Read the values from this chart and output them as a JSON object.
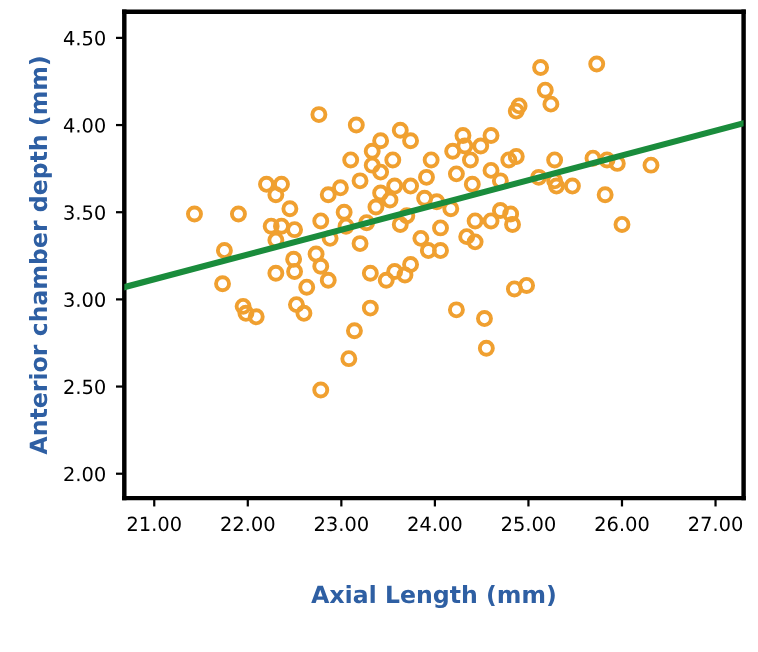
{
  "chart_data": {
    "type": "scatter",
    "xlabel": "Axial Length (mm)",
    "ylabel": "Anterior chamber depth (mm)",
    "xlim": [
      20.68,
      27.3
    ],
    "ylim": [
      1.86,
      4.65
    ],
    "xticks": [
      {
        "value": 21,
        "label": "21.00"
      },
      {
        "value": 22,
        "label": "22.00"
      },
      {
        "value": 23,
        "label": "23.00"
      },
      {
        "value": 24,
        "label": "24.00"
      },
      {
        "value": 25,
        "label": "25.00"
      },
      {
        "value": 26,
        "label": "26.00"
      },
      {
        "value": 27,
        "label": "27.00"
      }
    ],
    "yticks": [
      {
        "value": 2,
        "label": "2.00"
      },
      {
        "value": 2.5,
        "label": "2.50"
      },
      {
        "value": 3,
        "label": "3.00"
      },
      {
        "value": 3.5,
        "label": "3.50"
      },
      {
        "value": 4,
        "label": "4.00"
      },
      {
        "value": 4.5,
        "label": "4.50"
      }
    ],
    "grid": false,
    "marker": "circle",
    "series": [
      {
        "color": "#f0a030",
        "x": [
          21.43,
          21.9,
          21.75,
          21.73,
          21.95,
          21.98,
          22.09,
          22.2,
          22.36,
          22.3,
          22.45,
          22.25,
          22.36,
          22.5,
          22.3,
          22.49,
          22.3,
          22.5,
          22.52,
          22.6,
          22.76,
          22.78,
          22.63,
          22.73,
          22.78,
          22.86,
          22.99,
          22.86,
          22.88,
          23.03,
          23.05,
          23.16,
          23.1,
          23.14,
          23.08,
          23.31,
          23.2,
          23.31,
          23.27,
          23.2,
          23.33,
          23.33,
          23.42,
          23.42,
          23.37,
          23.52,
          23.55,
          23.57,
          23.63,
          23.7,
          23.74,
          23.57,
          23.48,
          23.68,
          23.74,
          23.85,
          23.89,
          23.91,
          23.96,
          24.02,
          24.06,
          24.06,
          23.93,
          24.17,
          24.23,
          24.19,
          24.23,
          24.3,
          24.32,
          24.38,
          24.4,
          24.43,
          24.34,
          24.43,
          24.53,
          24.55,
          24.49,
          24.6,
          24.6,
          24.7,
          24.7,
          24.81,
          24.83,
          24.85,
          24.98,
          24.79,
          24.87,
          24.87,
          24.9,
          25.13,
          25.18,
          25.24,
          25.11,
          25.28,
          25.28,
          25.3,
          25.47,
          25.73,
          25.69,
          25.84,
          25.82,
          25.95,
          26.0,
          26.31,
          24.6,
          22.78,
          23.74,
          23.63,
          23.42
        ],
        "values": [
          3.49,
          3.49,
          3.28,
          3.09,
          2.96,
          2.92,
          2.9,
          3.66,
          3.66,
          3.6,
          3.52,
          3.42,
          3.42,
          3.4,
          3.34,
          3.23,
          3.15,
          3.16,
          2.97,
          2.92,
          4.06,
          2.48,
          3.07,
          3.26,
          3.19,
          3.11,
          3.64,
          3.6,
          3.35,
          3.5,
          3.42,
          4.0,
          3.8,
          2.82,
          2.66,
          2.95,
          3.32,
          3.15,
          3.44,
          3.68,
          3.85,
          3.77,
          3.73,
          3.61,
          3.53,
          3.57,
          3.8,
          3.65,
          3.43,
          3.48,
          3.65,
          3.16,
          3.11,
          3.14,
          3.2,
          3.35,
          3.58,
          3.7,
          3.8,
          3.56,
          3.41,
          3.28,
          3.28,
          3.52,
          3.72,
          3.85,
          2.94,
          3.94,
          3.88,
          3.8,
          3.66,
          3.45,
          3.36,
          3.33,
          2.89,
          2.72,
          3.88,
          3.94,
          3.74,
          3.68,
          3.51,
          3.49,
          3.43,
          3.06,
          3.08,
          3.8,
          3.82,
          4.08,
          4.11,
          4.33,
          4.2,
          4.12,
          3.7,
          3.68,
          3.8,
          3.65,
          3.65,
          4.35,
          3.81,
          3.8,
          3.6,
          3.78,
          3.43,
          3.77,
          3.45,
          3.45,
          3.91,
          3.97,
          3.91
        ]
      },
      {
        "type": "line",
        "color": "#1a8c3c",
        "x": [
          20.68,
          27.3
        ],
        "values": [
          3.07,
          4.01
        ],
        "marker": "none"
      }
    ]
  }
}
